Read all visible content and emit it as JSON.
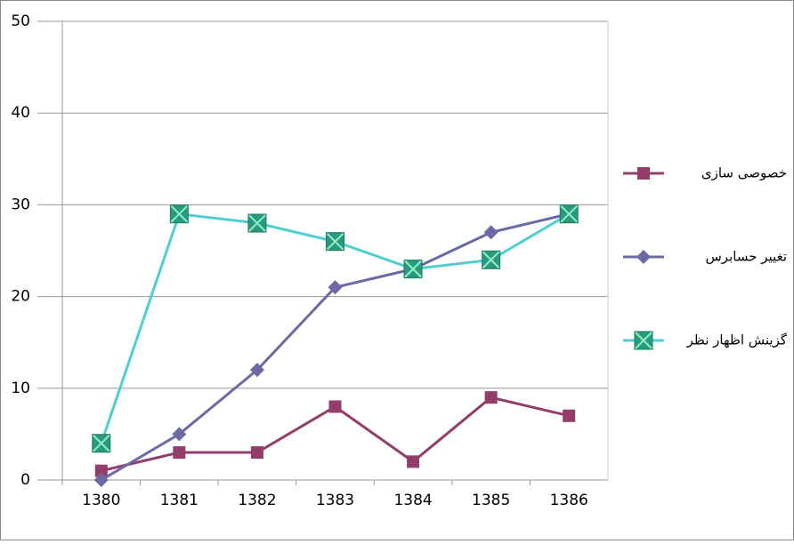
{
  "chart_data": {
    "type": "line",
    "categories": [
      "1380",
      "1381",
      "1382",
      "1383",
      "1384",
      "1385",
      "1386"
    ],
    "series": [
      {
        "name": "خصوصی سازی",
        "color": "#933d6b",
        "marker": "square",
        "values": [
          1,
          3,
          3,
          8,
          2,
          9,
          7
        ]
      },
      {
        "name": "تغییر حسابرس",
        "color": "#6b6aa5",
        "marker": "diamond",
        "values": [
          0,
          5,
          12,
          21,
          23,
          27,
          29
        ]
      },
      {
        "name": "گزینش اظهار نظر",
        "color": "#4dcfcf",
        "marker": "boxed-x",
        "values": [
          4,
          29,
          28,
          26,
          23,
          24,
          29
        ]
      }
    ],
    "ylim": [
      0,
      50
    ],
    "yticks": [
      0,
      10,
      20,
      30,
      40,
      50
    ],
    "grid": true,
    "legend": "right"
  }
}
